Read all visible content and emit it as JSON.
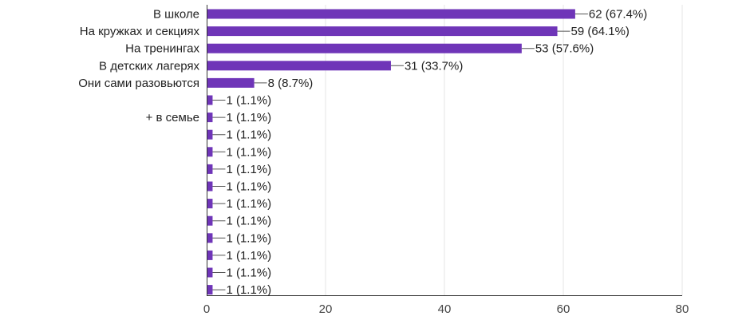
{
  "chart_data": {
    "type": "bar",
    "orientation": "horizontal",
    "categories": [
      "В школе",
      "На кружках и секциях",
      "На тренингах",
      "В детских лагерях",
      "Они сами разовьются",
      "",
      "+ в семье",
      "",
      "",
      "",
      "",
      "",
      "",
      "",
      "",
      "",
      ""
    ],
    "values": [
      62,
      59,
      53,
      31,
      8,
      1,
      1,
      1,
      1,
      1,
      1,
      1,
      1,
      1,
      1,
      1,
      1
    ],
    "data_labels": [
      "62 (67.4%)",
      "59 (64.1%)",
      "53 (57.6%)",
      "31 (33.7%)",
      "8 (8.7%)",
      "1 (1.1%)",
      "1 (1.1%)",
      "1 (1.1%)",
      "1 (1.1%)",
      "1 (1.1%)",
      "1 (1.1%)",
      "1 (1.1%)",
      "1 (1.1%)",
      "1 (1.1%)",
      "1 (1.1%)",
      "1 (1.1%)",
      "1 (1.1%)"
    ],
    "xlim": [
      0,
      80
    ],
    "x_ticks": [
      0,
      20,
      40,
      60,
      80
    ],
    "grid": true,
    "bar_color": "#6f35b8",
    "title": "",
    "xlabel": "",
    "ylabel": ""
  }
}
